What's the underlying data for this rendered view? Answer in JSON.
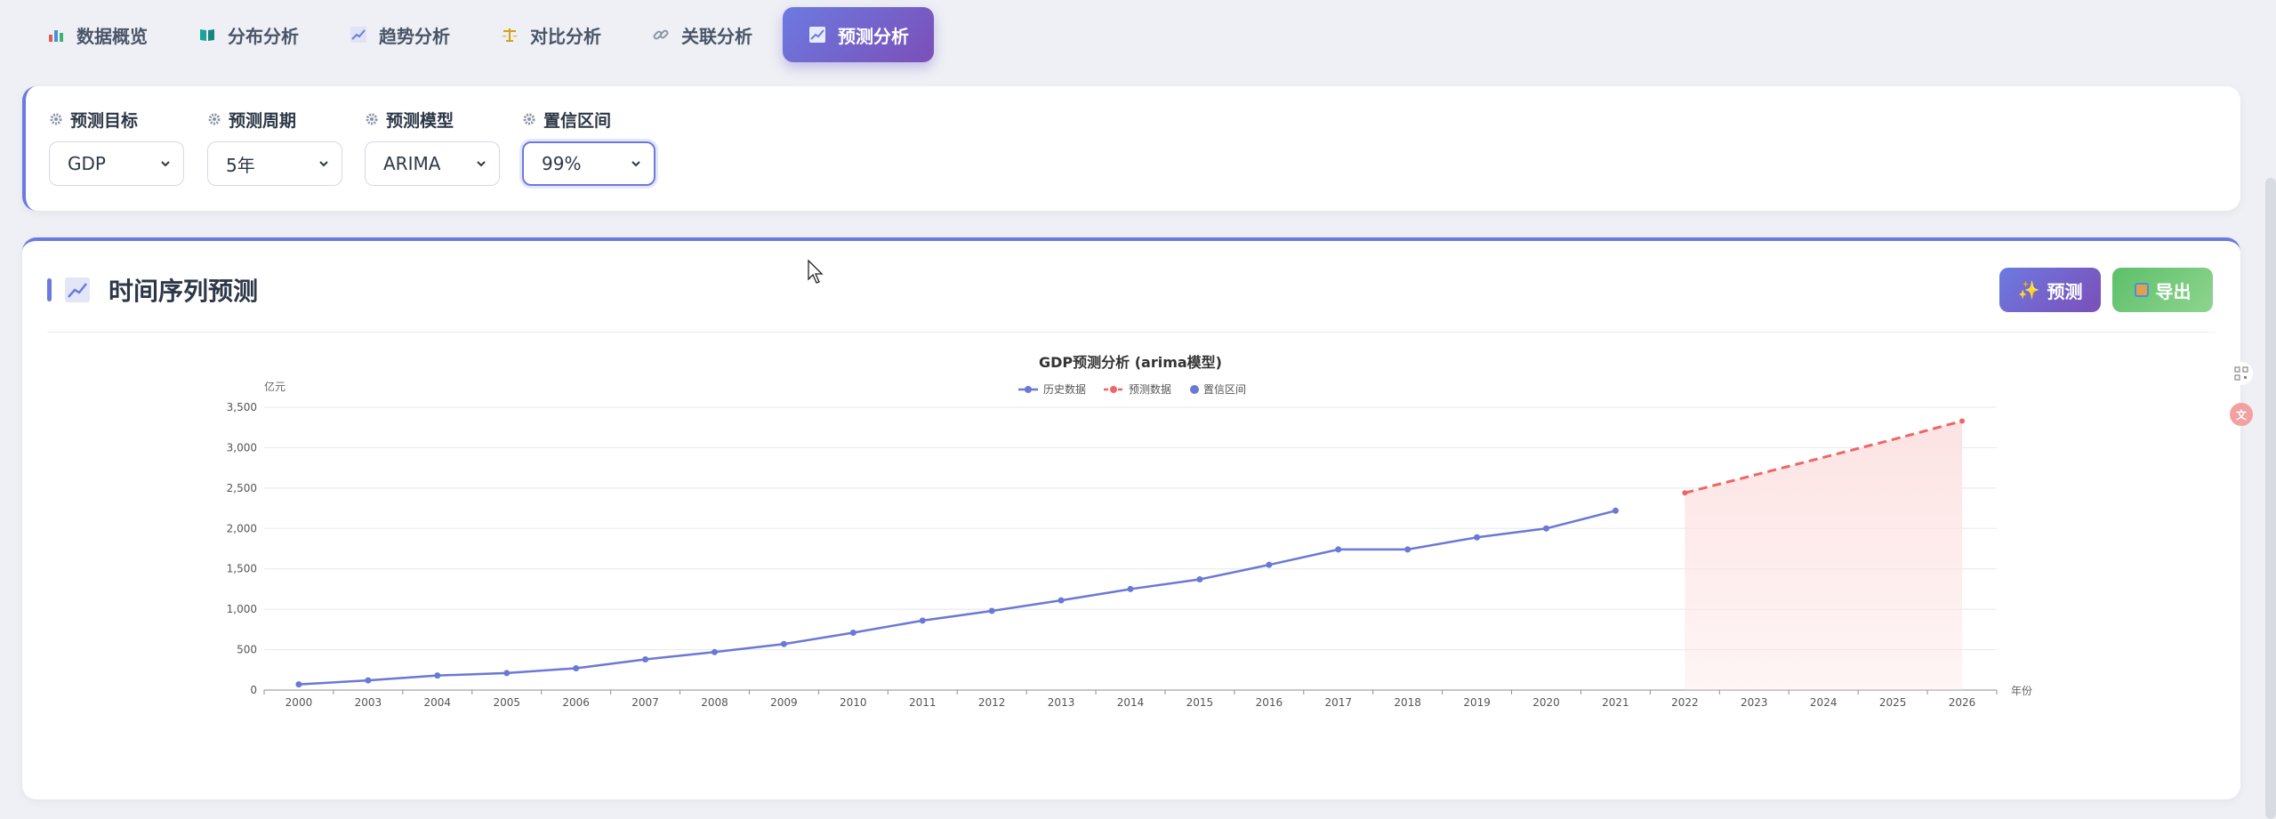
{
  "tabs": [
    {
      "label": "数据概览",
      "icon": "bar-chart-icon",
      "active": false
    },
    {
      "label": "分布分析",
      "icon": "book-icon",
      "active": false
    },
    {
      "label": "趋势分析",
      "icon": "trend-chart-icon",
      "active": false
    },
    {
      "label": "对比分析",
      "icon": "scale-icon",
      "active": false
    },
    {
      "label": "关联分析",
      "icon": "link-icon",
      "active": false
    },
    {
      "label": "预测分析",
      "icon": "forecast-chart-icon",
      "active": true
    }
  ],
  "controls": {
    "target": {
      "label": "预测目标",
      "value": "GDP"
    },
    "period": {
      "label": "预测周期",
      "value": "5年"
    },
    "model": {
      "label": "预测模型",
      "value": "ARIMA"
    },
    "confidence": {
      "label": "置信区间",
      "value": "99%"
    }
  },
  "card": {
    "title": "时间序列预测",
    "predict_label": "预测",
    "export_label": "导出"
  },
  "colors": {
    "accent": "#6c7ae0",
    "history": "#6a78d6",
    "forecast": "#ee6666",
    "band": "#fde3e3",
    "export": "#5cc06a"
  },
  "chart_data": {
    "type": "line",
    "title": "GDP预测分析 (arima模型)",
    "ylabel": "亿元",
    "xlabel": "年份",
    "ylim": [
      0,
      3500
    ],
    "yticks": [
      0,
      500,
      1000,
      1500,
      2000,
      2500,
      3000,
      3500
    ],
    "ytick_labels": [
      "0",
      "500",
      "1,000",
      "1,500",
      "2,000",
      "2,500",
      "3,000",
      "3,500"
    ],
    "categories": [
      "2000",
      "2003",
      "2004",
      "2005",
      "2006",
      "2007",
      "2008",
      "2009",
      "2010",
      "2011",
      "2012",
      "2013",
      "2014",
      "2015",
      "2016",
      "2017",
      "2018",
      "2019",
      "2020",
      "2021",
      "2022",
      "2023",
      "2024",
      "2025",
      "2026"
    ],
    "legend": [
      "历史数据",
      "预测数据",
      "置信区间"
    ],
    "legend_position": "top-center",
    "grid": true,
    "series": [
      {
        "name": "历史数据",
        "style": "solid-with-markers",
        "values": [
          70,
          120,
          180,
          210,
          270,
          380,
          470,
          570,
          710,
          860,
          980,
          1110,
          1250,
          1370,
          1550,
          1740,
          1740,
          1890,
          2000,
          2220,
          null,
          null,
          null,
          null,
          null
        ]
      },
      {
        "name": "预测数据",
        "style": "dashed",
        "values": [
          null,
          null,
          null,
          null,
          null,
          null,
          null,
          null,
          null,
          null,
          null,
          null,
          null,
          null,
          null,
          null,
          null,
          null,
          null,
          null,
          2440,
          2660,
          2880,
          3100,
          3330
        ]
      },
      {
        "name": "置信区间",
        "style": "area",
        "lower": [
          null,
          null,
          null,
          null,
          null,
          null,
          null,
          null,
          null,
          null,
          null,
          null,
          null,
          null,
          null,
          null,
          null,
          null,
          null,
          null,
          0,
          0,
          0,
          0,
          0
        ],
        "upper": [
          null,
          null,
          null,
          null,
          null,
          null,
          null,
          null,
          null,
          null,
          null,
          null,
          null,
          null,
          null,
          null,
          null,
          null,
          null,
          null,
          2440,
          2660,
          2880,
          3100,
          3330
        ]
      }
    ]
  }
}
